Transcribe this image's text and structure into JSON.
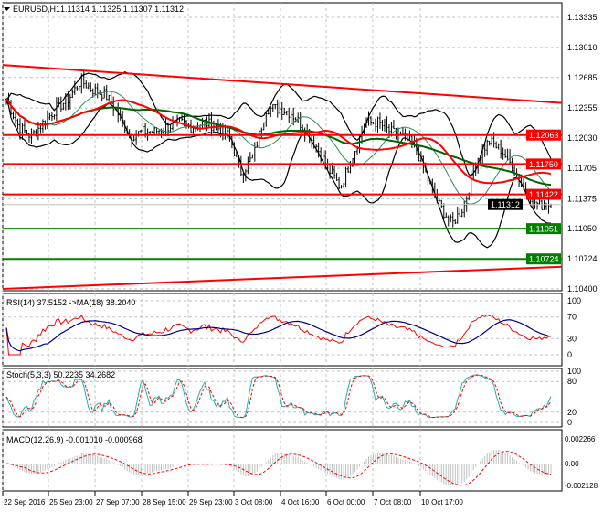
{
  "header": {
    "symbol": "EURUSD,H1",
    "ohlc": "1.11314 1.11325 1.11307 1.11312"
  },
  "colors": {
    "bg": "#ffffff",
    "grid": "#c0c0c0",
    "bull": "#000000",
    "resistance": "#ff0000",
    "support": "#008000",
    "price_tag": "#000000",
    "rsi": "#ff0000",
    "rsi_ma": "#000080",
    "stoch_main": "#20b2aa",
    "stoch_signal": "#ff0000",
    "macd_hist": "#c0c0c0",
    "macd_signal": "#ff0000",
    "bands": "#000000"
  },
  "chart_data": [
    {
      "type": "candlestick",
      "title": "EURUSD,H1",
      "x_ticks": [
        "22 Sep 2016",
        "25 Sep 23:00",
        "27 Sep 07:00",
        "28 Sep 15:00",
        "29 Sep 23:00",
        "3 Oct 08:00",
        "4 Oct 16:00",
        "6 Oct 00:00",
        "7 Oct 08:00",
        "10 Oct 17:00"
      ],
      "y_ticks": [
        "1.13335",
        "1.13010",
        "1.12685",
        "1.12355",
        "1.12030",
        "1.11705",
        "1.11375",
        "1.11050",
        "1.10724",
        "1.10400"
      ],
      "ylim": [
        1.104,
        1.13335
      ],
      "close": [
        1.1245,
        1.1215,
        1.1205,
        1.122,
        1.1235,
        1.1245,
        1.1265,
        1.1255,
        1.125,
        1.123,
        1.1205,
        1.121,
        1.121,
        1.1215,
        1.122,
        1.1215,
        1.122,
        1.1215,
        1.1205,
        1.1165,
        1.1185,
        1.1235,
        1.1235,
        1.123,
        1.1215,
        1.1195,
        1.117,
        1.115,
        1.1185,
        1.122,
        1.122,
        1.121,
        1.1205,
        1.1195,
        1.116,
        1.113,
        1.111,
        1.113,
        1.118,
        1.12,
        1.119,
        1.117,
        1.1145,
        1.113,
        1.11312
      ],
      "levels": [
        {
          "value": "1.12063",
          "kind": "resistance"
        },
        {
          "value": "1.11750",
          "kind": "resistance"
        },
        {
          "value": "1.11422",
          "kind": "resistance"
        },
        {
          "value": "1.11051",
          "kind": "support"
        },
        {
          "value": "1.10724",
          "kind": "support"
        }
      ],
      "current_price": "1.11312",
      "trendlines": [
        {
          "kind": "resistance",
          "from": 1.1282,
          "to": 1.1241
        },
        {
          "kind": "support",
          "from": 1.104,
          "to": 1.1064
        }
      ],
      "overlays": [
        "Bollinger Bands",
        "moving averages"
      ]
    },
    {
      "type": "line",
      "legend": "RSI(14) 37.5152  ->MA(18) 38.2040",
      "y_ticks": [
        "100",
        "70",
        "30",
        "0"
      ],
      "ylim": [
        0,
        100
      ]
    },
    {
      "type": "line",
      "legend": "Stoch(5,3,3) 50.2235 34.2682",
      "y_ticks": [
        "100",
        "80",
        "20",
        "0"
      ],
      "ylim": [
        0,
        100
      ]
    },
    {
      "type": "bar",
      "legend": "MACD(12,26,9) -0.001010 -0.000968",
      "y_ticks": [
        "0.002266",
        "0.00",
        "-0.002128"
      ],
      "ylim": [
        -0.002128,
        0.002266
      ]
    }
  ]
}
